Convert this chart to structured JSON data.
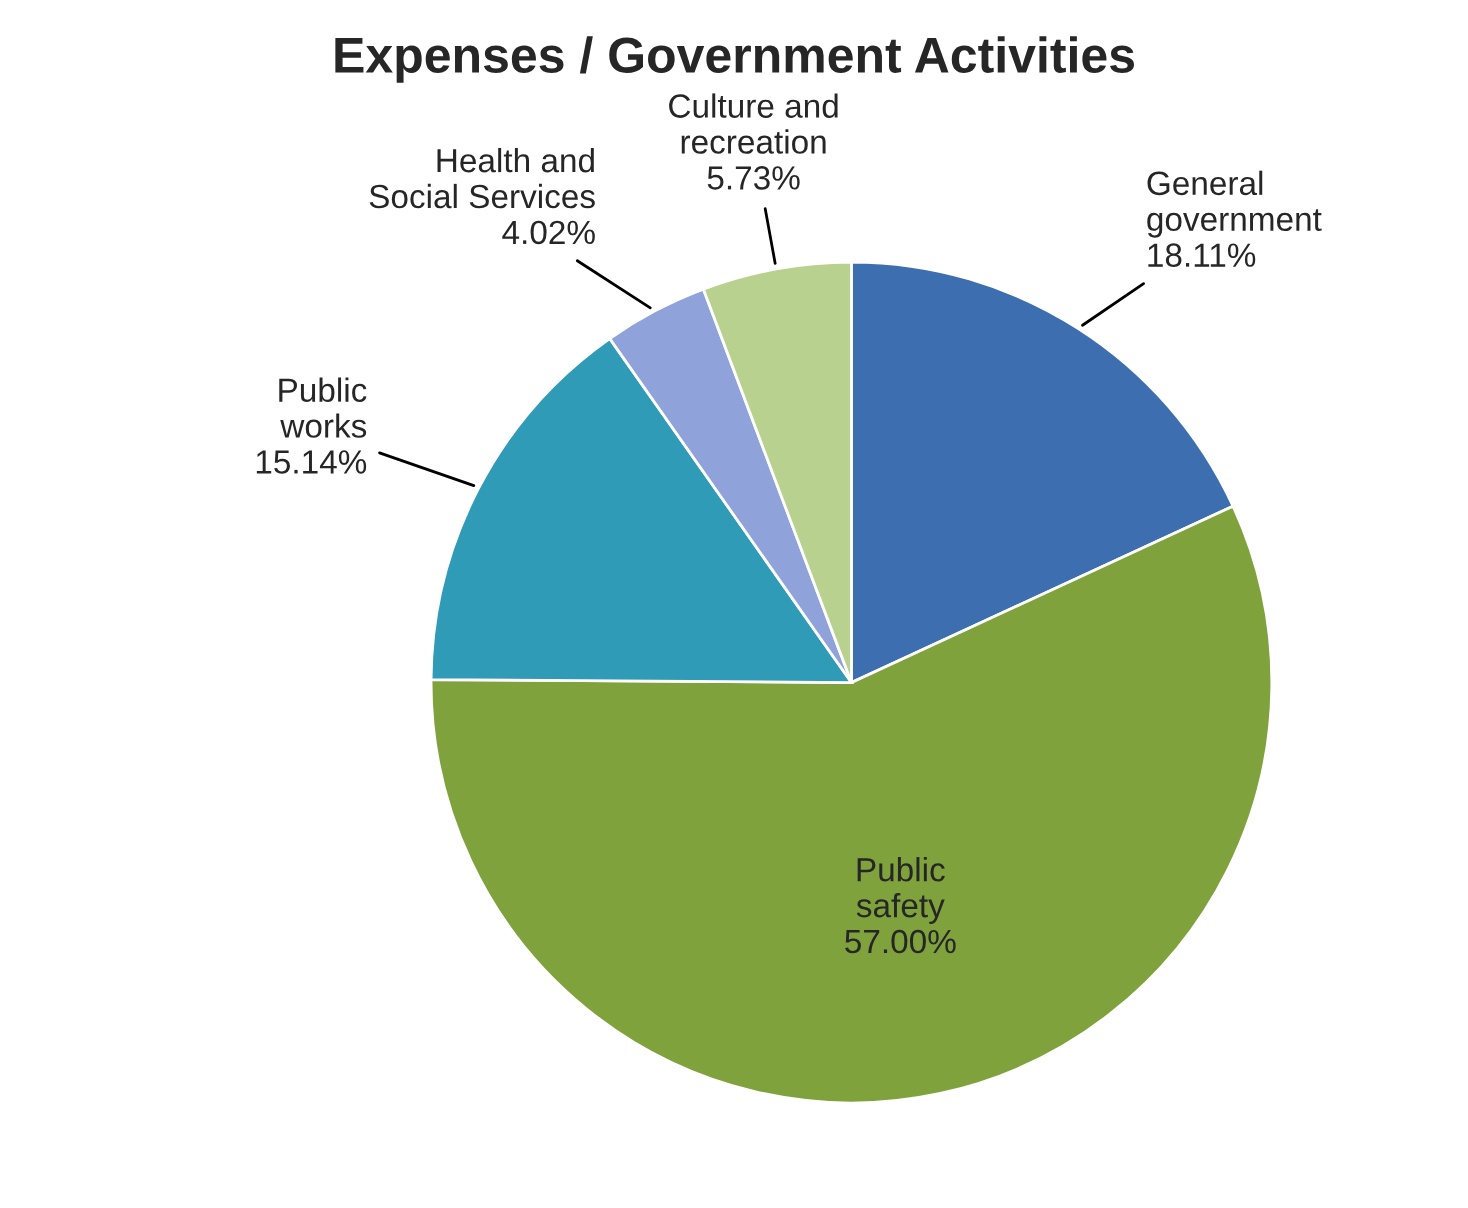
{
  "chart_data": {
    "type": "pie",
    "title": "Expenses / Government Activities",
    "categories": [
      "General government",
      "Public safety",
      "Public works",
      "Health and Social Services",
      "Culture and recreation"
    ],
    "values": [
      18.11,
      57.0,
      15.14,
      4.02,
      5.73
    ],
    "value_labels": [
      "18.11%",
      "57.00%",
      "15.14%",
      "4.02%",
      "5.73%"
    ],
    "colors": [
      "#3d6fb0",
      "#7fa23d",
      "#2f9bb6",
      "#8fa2da",
      "#b9d18e"
    ],
    "legend": false
  }
}
